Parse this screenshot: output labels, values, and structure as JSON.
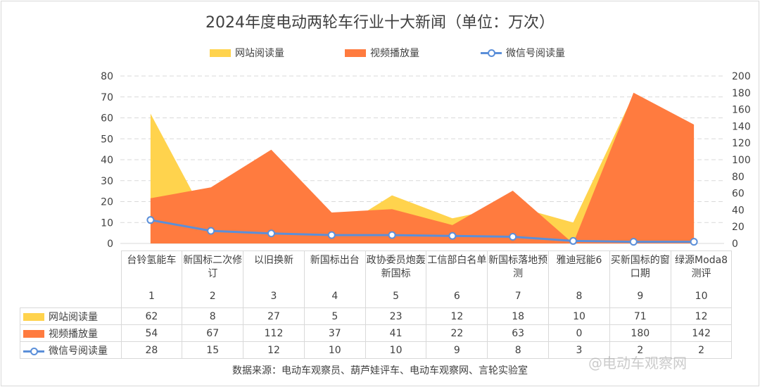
{
  "title": "2024年度电动两轮车行业十大新闻（单位：万次）",
  "source": "数据来源：电动车观察员、葫芦娃评车、电动车观察网、言轮实验室",
  "watermark": "@电动车观察网",
  "chart_data": {
    "type": "area",
    "title": "2024年度电动两轮车行业十大新闻（单位：万次）",
    "categories": [
      "台铃氢能车",
      "新国标二次修订",
      "以旧换新",
      "新国标出台",
      "政协委员炮轰新国标",
      "工信部白名单",
      "新国标落地预测",
      "雅迪冠能6",
      "买新国标的窗口期",
      "绿源Moda8测评"
    ],
    "category_numbers": [
      "1",
      "2",
      "3",
      "4",
      "5",
      "6",
      "7",
      "8",
      "9",
      "10"
    ],
    "series": [
      {
        "name": "网站阅读量",
        "type": "area",
        "axis": "left",
        "color": "#ffd34d",
        "values": [
          62,
          8,
          27,
          5,
          23,
          12,
          18,
          10,
          71,
          12
        ]
      },
      {
        "name": "视频播放量",
        "type": "area",
        "axis": "right",
        "color": "#ff7b3f",
        "values": [
          54,
          67,
          112,
          37,
          41,
          22,
          63,
          0,
          180,
          142
        ]
      },
      {
        "name": "微信号阅读量",
        "type": "line",
        "axis": "right",
        "color": "#5b8fd9",
        "values": [
          28,
          15,
          12,
          10,
          10,
          9,
          8,
          3,
          2,
          2
        ]
      }
    ],
    "left_axis": {
      "min": 0,
      "max": 80,
      "ticks": [
        0,
        10,
        20,
        30,
        40,
        50,
        60,
        70,
        80
      ]
    },
    "right_axis": {
      "min": 0,
      "max": 200,
      "ticks": [
        0,
        20,
        40,
        60,
        80,
        100,
        120,
        140,
        160,
        180,
        200
      ]
    },
    "grid": "horizontal dashed",
    "legend": "top-center",
    "data_table": true
  }
}
